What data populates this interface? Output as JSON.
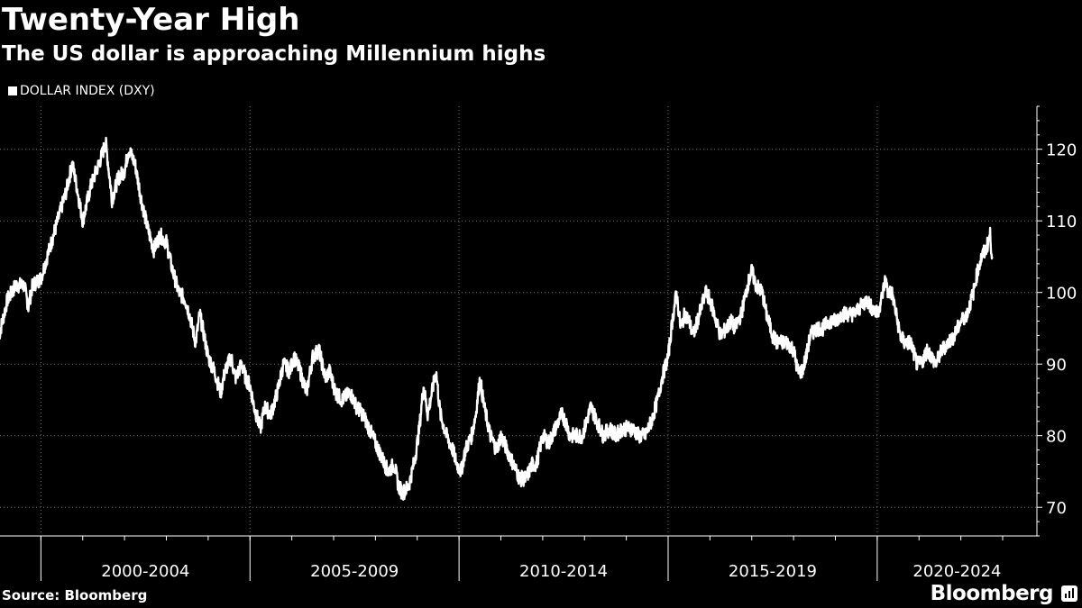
{
  "header": {
    "title": "Twenty-Year High",
    "subtitle": "The US dollar is approaching Millennium highs"
  },
  "legend": {
    "label": "DOLLAR INDEX (DXY)",
    "color": "#ffffff"
  },
  "footer": {
    "source": "Source: Bloomberg",
    "brand": "Bloomberg"
  },
  "chart_data": {
    "type": "line",
    "xlabel": "",
    "ylabel": "",
    "xlim": [
      1999.0,
      2023.0
    ],
    "ylim": [
      66,
      126
    ],
    "y_ticks": [
      70,
      80,
      90,
      100,
      110,
      120
    ],
    "x_groups": [
      {
        "label": "2000-2004",
        "start": 2000.0,
        "end": 2005.0
      },
      {
        "label": "2005-2009",
        "start": 2005.0,
        "end": 2010.0
      },
      {
        "label": "2010-2014",
        "start": 2010.0,
        "end": 2015.0
      },
      {
        "label": "2015-2019",
        "start": 2015.0,
        "end": 2020.0
      },
      {
        "label": "2020-2024",
        "start": 2020.0,
        "end": 2025.0
      }
    ],
    "grid": true,
    "legend_position": "top-left",
    "series": [
      {
        "name": "DOLLAR INDEX (DXY)",
        "color": "#ffffff",
        "points": [
          [
            1999.0,
            94
          ],
          [
            1999.2,
            99
          ],
          [
            1999.4,
            101
          ],
          [
            1999.6,
            101
          ],
          [
            1999.7,
            98
          ],
          [
            1999.8,
            101
          ],
          [
            2000.0,
            102
          ],
          [
            2000.2,
            106
          ],
          [
            2000.4,
            110
          ],
          [
            2000.6,
            114
          ],
          [
            2000.75,
            118
          ],
          [
            2000.85,
            115
          ],
          [
            2001.0,
            110
          ],
          [
            2001.2,
            115
          ],
          [
            2001.45,
            119
          ],
          [
            2001.55,
            121
          ],
          [
            2001.7,
            113
          ],
          [
            2001.85,
            116
          ],
          [
            2002.0,
            117
          ],
          [
            2002.1,
            120
          ],
          [
            2002.25,
            118
          ],
          [
            2002.4,
            113
          ],
          [
            2002.55,
            109
          ],
          [
            2002.7,
            106
          ],
          [
            2002.85,
            108
          ],
          [
            2003.0,
            107
          ],
          [
            2003.15,
            103
          ],
          [
            2003.3,
            100
          ],
          [
            2003.45,
            99
          ],
          [
            2003.55,
            97
          ],
          [
            2003.7,
            93
          ],
          [
            2003.8,
            97
          ],
          [
            2003.9,
            94
          ],
          [
            2004.0,
            91
          ],
          [
            2004.15,
            89
          ],
          [
            2004.3,
            86
          ],
          [
            2004.4,
            89
          ],
          [
            2004.55,
            91
          ],
          [
            2004.65,
            88
          ],
          [
            2004.8,
            90
          ],
          [
            2004.9,
            88
          ],
          [
            2005.0,
            87
          ],
          [
            2005.1,
            84
          ],
          [
            2005.25,
            81
          ],
          [
            2005.35,
            84
          ],
          [
            2005.5,
            83
          ],
          [
            2005.65,
            86
          ],
          [
            2005.8,
            90
          ],
          [
            2005.95,
            89
          ],
          [
            2006.05,
            91
          ],
          [
            2006.2,
            89
          ],
          [
            2006.35,
            86
          ],
          [
            2006.5,
            91
          ],
          [
            2006.65,
            92
          ],
          [
            2006.8,
            88
          ],
          [
            2006.9,
            89
          ],
          [
            2007.05,
            86
          ],
          [
            2007.2,
            85
          ],
          [
            2007.4,
            86
          ],
          [
            2007.55,
            84
          ],
          [
            2007.7,
            83
          ],
          [
            2007.85,
            81
          ],
          [
            2008.0,
            79
          ],
          [
            2008.15,
            77
          ],
          [
            2008.3,
            75
          ],
          [
            2008.45,
            76
          ],
          [
            2008.55,
            73
          ],
          [
            2008.65,
            72
          ],
          [
            2008.8,
            73
          ],
          [
            2008.95,
            77
          ],
          [
            2009.05,
            81
          ],
          [
            2009.15,
            87
          ],
          [
            2009.25,
            83
          ],
          [
            2009.35,
            86
          ],
          [
            2009.45,
            89
          ],
          [
            2009.55,
            83
          ],
          [
            2009.7,
            80
          ],
          [
            2009.85,
            78
          ],
          [
            2009.95,
            76
          ],
          [
            2010.05,
            75
          ],
          [
            2010.15,
            78
          ],
          [
            2010.3,
            80
          ],
          [
            2010.4,
            83
          ],
          [
            2010.5,
            88
          ],
          [
            2010.6,
            84
          ],
          [
            2010.75,
            80
          ],
          [
            2010.9,
            78
          ],
          [
            2011.0,
            80
          ],
          [
            2011.15,
            78
          ],
          [
            2011.3,
            76
          ],
          [
            2011.45,
            74
          ],
          [
            2011.6,
            74
          ],
          [
            2011.75,
            76
          ],
          [
            2011.85,
            76
          ],
          [
            2012.0,
            80
          ],
          [
            2012.15,
            79
          ],
          [
            2012.3,
            81
          ],
          [
            2012.45,
            83
          ],
          [
            2012.55,
            82
          ],
          [
            2012.65,
            80
          ],
          [
            2012.8,
            80
          ],
          [
            2012.95,
            80
          ],
          [
            2013.05,
            82
          ],
          [
            2013.15,
            84
          ],
          [
            2013.3,
            82
          ],
          [
            2013.45,
            80
          ],
          [
            2013.6,
            81
          ],
          [
            2013.75,
            80
          ],
          [
            2013.9,
            81
          ],
          [
            2014.0,
            81
          ],
          [
            2014.15,
            81
          ],
          [
            2014.3,
            80
          ],
          [
            2014.45,
            80
          ],
          [
            2014.6,
            82
          ],
          [
            2014.75,
            85
          ],
          [
            2014.85,
            88
          ],
          [
            2015.0,
            91
          ],
          [
            2015.1,
            96
          ],
          [
            2015.2,
            100
          ],
          [
            2015.3,
            95
          ],
          [
            2015.4,
            97
          ],
          [
            2015.5,
            96
          ],
          [
            2015.6,
            94
          ],
          [
            2015.75,
            97
          ],
          [
            2015.9,
            100
          ],
          [
            2016.0,
            99
          ],
          [
            2016.1,
            97
          ],
          [
            2016.25,
            94
          ],
          [
            2016.4,
            95
          ],
          [
            2016.5,
            96
          ],
          [
            2016.6,
            95
          ],
          [
            2016.75,
            97
          ],
          [
            2016.9,
            101
          ],
          [
            2017.0,
            103
          ],
          [
            2017.1,
            101
          ],
          [
            2017.25,
            100
          ],
          [
            2017.35,
            97
          ],
          [
            2017.5,
            94
          ],
          [
            2017.6,
            93
          ],
          [
            2017.7,
            93
          ],
          [
            2017.85,
            93
          ],
          [
            2018.0,
            92
          ],
          [
            2018.1,
            89
          ],
          [
            2018.2,
            89
          ],
          [
            2018.3,
            91
          ],
          [
            2018.4,
            94
          ],
          [
            2018.55,
            95
          ],
          [
            2018.7,
            95
          ],
          [
            2018.85,
            96
          ],
          [
            2019.0,
            96
          ],
          [
            2019.15,
            97
          ],
          [
            2019.3,
            97
          ],
          [
            2019.45,
            97
          ],
          [
            2019.6,
            98
          ],
          [
            2019.75,
            99
          ],
          [
            2019.85,
            98
          ],
          [
            2020.0,
            97
          ],
          [
            2020.1,
            99
          ],
          [
            2020.2,
            102
          ],
          [
            2020.25,
            100
          ],
          [
            2020.35,
            100
          ],
          [
            2020.45,
            97
          ],
          [
            2020.55,
            94
          ],
          [
            2020.65,
            93
          ],
          [
            2020.8,
            93
          ],
          [
            2020.95,
            90
          ],
          [
            2021.05,
            90
          ],
          [
            2021.2,
            92
          ],
          [
            2021.3,
            91
          ],
          [
            2021.4,
            90
          ],
          [
            2021.55,
            92
          ],
          [
            2021.7,
            93
          ],
          [
            2021.85,
            94
          ],
          [
            2022.0,
            96
          ],
          [
            2022.15,
            97
          ],
          [
            2022.3,
            100
          ],
          [
            2022.4,
            103
          ],
          [
            2022.5,
            105
          ],
          [
            2022.6,
            106
          ],
          [
            2022.7,
            108
          ],
          [
            2022.75,
            105
          ]
        ]
      }
    ]
  }
}
